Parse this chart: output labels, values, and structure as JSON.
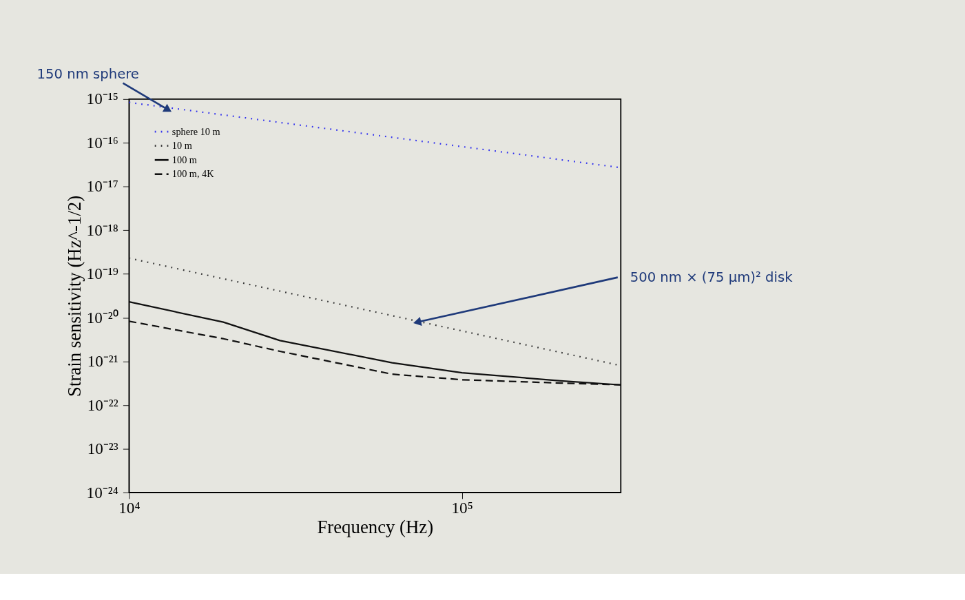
{
  "chart_data": {
    "type": "line",
    "xlabel": "Frequency (Hz)",
    "ylabel": "Strain sensitivity (Hz^-1/2)",
    "log": "xy",
    "grid": false,
    "legend": "top left",
    "marker": "none",
    "xlim": [
      10000,
      300000
    ],
    "xticks": [
      {
        "value": 10000,
        "label": "10⁴"
      },
      {
        "value": 100000,
        "label": "10⁵"
      }
    ],
    "ylim": [
      1e-24,
      1e-15
    ],
    "yticks": [
      {
        "value": 1e-24,
        "label": "10⁻²⁴"
      },
      {
        "value": 1e-23,
        "label": "10⁻²³"
      },
      {
        "value": 1e-22,
        "label": "10⁻²²"
      },
      {
        "value": 1e-21,
        "label": "10⁻²¹"
      },
      {
        "value": 1e-20,
        "label": "10⁻²⁰"
      },
      {
        "value": 1e-19,
        "label": "10⁻¹⁹"
      },
      {
        "value": 1e-18,
        "label": "10⁻¹⁸"
      },
      {
        "value": 1e-17,
        "label": "10⁻¹⁷"
      },
      {
        "value": 1e-16,
        "label": "10⁻¹⁶"
      },
      {
        "value": 1e-15,
        "label": "10⁻¹⁵"
      }
    ],
    "series": [
      {
        "name": "sphere 10 m",
        "color": "#3333ee",
        "line_style": "dotted",
        "x": [
          10000,
          300000
        ],
        "values": [
          8.4e-16,
          2.7e-17
        ]
      },
      {
        "name": "10 m",
        "color": "#333333",
        "line_style": "dotted",
        "x": [
          10000,
          300000
        ],
        "values": [
          2.3e-19,
          8e-22
        ]
      },
      {
        "name": "100 m",
        "color": "#111111",
        "line_style": "solid",
        "x": [
          10000,
          19200,
          28400,
          61700,
          100000,
          198000,
          300000
        ],
        "values": [
          2.3e-20,
          7.9e-21,
          3e-21,
          9.3e-22,
          5.5e-22,
          3.6e-22,
          2.9e-22
        ]
      },
      {
        "name": "100 m, 4K",
        "color": "#111111",
        "line_style": "dashed",
        "x": [
          10000,
          19200,
          28400,
          61700,
          100000,
          198000,
          300000
        ],
        "values": [
          8.3e-21,
          3.3e-21,
          1.7e-21,
          5.1e-22,
          3.8e-22,
          3.2e-22,
          2.9e-22
        ]
      }
    ],
    "annotations": [
      {
        "text": "150 nm sphere",
        "x": 13000,
        "y": 5.9e-16
      },
      {
        "text": "500 nm × (75 μm)² disk",
        "x": 74000,
        "y": 8e-21
      }
    ]
  }
}
